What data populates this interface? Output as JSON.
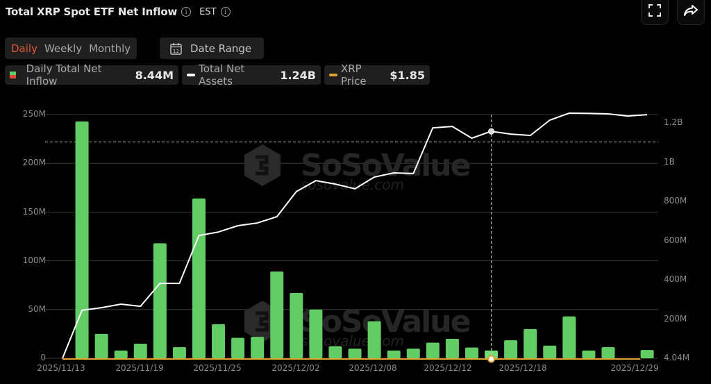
{
  "header": {
    "title": "Total XRP Spot ETF Net Inflow",
    "timezone": "EST",
    "info_icon": "info-icon",
    "fullscreen_icon": "fullscreen-icon",
    "share_icon": "share-icon"
  },
  "period_tabs": [
    {
      "label": "Daily",
      "active": true
    },
    {
      "label": "Weekly",
      "active": false
    },
    {
      "label": "Monthly",
      "active": false
    }
  ],
  "date_range": {
    "label": "Date Range",
    "icon": "calendar-icon",
    "icon_text": "12"
  },
  "legend": [
    {
      "label": "Daily Total Net Inflow",
      "value": "8.44M",
      "swatch": "bar",
      "colors": [
        "#5fcf65",
        "#e2493a"
      ]
    },
    {
      "label": "Total Net Assets",
      "value": "1.24B",
      "swatch": "line",
      "colors": [
        "#ffffff"
      ]
    },
    {
      "label": "XRP Price",
      "value": "$1.85",
      "swatch": "line",
      "colors": [
        "#e0a030"
      ]
    }
  ],
  "colors": {
    "inflow_positive": "#63cd65",
    "net_assets_line": "#ffffff",
    "price_line": "#e0a030",
    "active_tab": "#e2593a",
    "grid": "#3a3a3a"
  },
  "watermark": {
    "brand": "SoSoValue",
    "url": "sosovalue.com"
  },
  "crosshair": {
    "date": "2025/12/16",
    "index": 22
  },
  "chart_data": {
    "type": "bar",
    "title": "Total XRP Spot ETF Net Inflow",
    "xlabel": "",
    "ylabel_left": "Daily Total Net Inflow",
    "ylabel_right": "Total Net Assets",
    "ylim_left": [
      0,
      250000000
    ],
    "yticks_left": [
      "0",
      "50M",
      "100M",
      "150M",
      "200M",
      "250M"
    ],
    "yticks_right": [
      "4.04M",
      "200M",
      "400M",
      "600M",
      "800M",
      "1B",
      "1.2B"
    ],
    "xticks": [
      "2025/11/13",
      "2025/11/19",
      "2025/11/25",
      "2025/12/02",
      "2025/12/08",
      "2025/12/12",
      "2025/12/18",
      "2025/12/29"
    ],
    "grid": true,
    "legend_position": "top-left",
    "categories": [
      "2025/11/13",
      "2025/11/14",
      "2025/11/17",
      "2025/11/18",
      "2025/11/19",
      "2025/11/20",
      "2025/11/21",
      "2025/11/24",
      "2025/11/25",
      "2025/11/26",
      "2025/11/28",
      "2025/12/01",
      "2025/12/02",
      "2025/12/03",
      "2025/12/04",
      "2025/12/05",
      "2025/12/08",
      "2025/12/09",
      "2025/12/10",
      "2025/12/11",
      "2025/12/12",
      "2025/12/15",
      "2025/12/16",
      "2025/12/17",
      "2025/12/18",
      "2025/12/19",
      "2025/12/22",
      "2025/12/23",
      "2025/12/24",
      "2025/12/26",
      "2025/12/29"
    ],
    "series": [
      {
        "name": "Daily Total Net Inflow",
        "type": "bar",
        "axis": "left",
        "values": [
          0,
          243000000,
          25000000,
          8000000,
          15000000,
          118000000,
          11500000,
          164000000,
          35000000,
          21000000,
          22000000,
          89000000,
          67000000,
          50000000,
          12500000,
          10000000,
          38000000,
          8000000,
          10000000,
          16000000,
          20000000,
          11000000,
          8000000,
          18500000,
          30000000,
          13000000,
          43000000,
          8000000,
          11500000,
          0,
          8440000
        ]
      },
      {
        "name": "Total Net Assets",
        "type": "line",
        "axis": "right",
        "values": [
          0,
          245000000,
          258000000,
          276000000,
          265000000,
          382000000,
          382000000,
          626000000,
          644000000,
          676000000,
          690000000,
          722000000,
          850000000,
          906000000,
          888000000,
          864000000,
          924000000,
          945000000,
          942000000,
          1175000000,
          1182000000,
          1122000000,
          1157000000,
          1143000000,
          1136000000,
          1214000000,
          1250000000,
          1249000000,
          1246000000,
          1235000000,
          1242000000
        ]
      },
      {
        "name": "XRP Price",
        "type": "line",
        "axis": "hidden",
        "latest": 1.85
      }
    ],
    "reference_line_left": 222000000
  }
}
